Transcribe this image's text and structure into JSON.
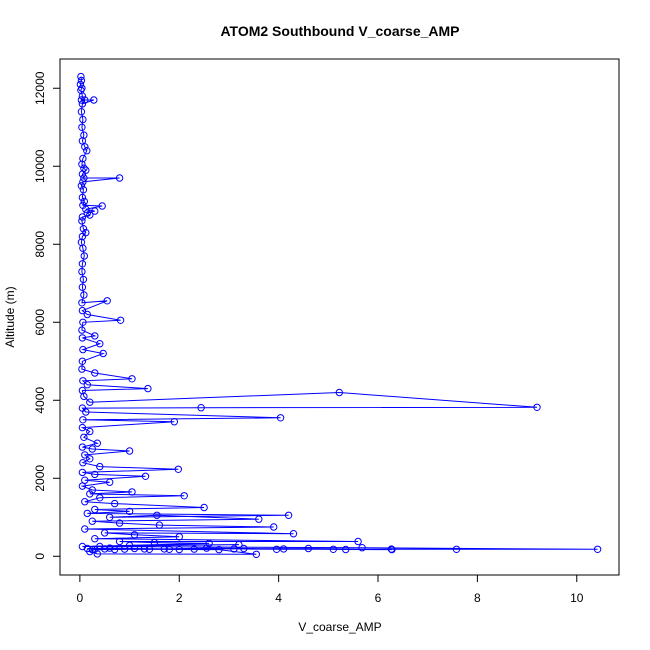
{
  "chart_data": {
    "type": "line",
    "title": "ATOM2 Southbound V_coarse_AMP",
    "xlabel": "V_coarse_AMP",
    "ylabel": "Altitude (m)",
    "xlim": [
      -0.4,
      10.85
    ],
    "ylim": [
      -480,
      12750
    ],
    "xticks": [
      "0",
      "2",
      "4",
      "6",
      "8",
      "10"
    ],
    "yticks": [
      "0",
      "2000",
      "4000",
      "6000",
      "8000",
      "10000",
      "12000"
    ],
    "grid": false,
    "marker": "open-circle",
    "colors": {
      "series": "#0000ff",
      "axis": "#000000",
      "background": "#ffffff"
    },
    "series": [
      {
        "points": [
          [
            0.02,
            12300
          ],
          [
            0.03,
            12200
          ],
          [
            0.01,
            12100
          ],
          [
            0.04,
            12000
          ],
          [
            0.02,
            11950
          ],
          [
            0.05,
            11800
          ],
          [
            0.03,
            11700
          ],
          [
            0.1,
            11700
          ],
          [
            0.28,
            11700
          ],
          [
            0.05,
            11600
          ],
          [
            0.03,
            11400
          ],
          [
            0.06,
            11200
          ],
          [
            0.04,
            11000
          ],
          [
            0.08,
            10800
          ],
          [
            0.05,
            10650
          ],
          [
            0.1,
            10500
          ],
          [
            0.14,
            10400
          ],
          [
            0.06,
            10200
          ],
          [
            0.04,
            10050
          ],
          [
            0.08,
            9950
          ],
          [
            0.12,
            9900
          ],
          [
            0.05,
            9800
          ],
          [
            0.08,
            9700
          ],
          [
            0.8,
            9700
          ],
          [
            0.06,
            9600
          ],
          [
            0.03,
            9500
          ],
          [
            0.07,
            9400
          ],
          [
            0.05,
            9200
          ],
          [
            0.09,
            9100
          ],
          [
            0.06,
            9000
          ],
          [
            0.45,
            8980
          ],
          [
            0.12,
            8900
          ],
          [
            0.3,
            8850
          ],
          [
            0.15,
            8800
          ],
          [
            0.2,
            8750
          ],
          [
            0.05,
            8700
          ],
          [
            0.04,
            8600
          ],
          [
            0.07,
            8400
          ],
          [
            0.12,
            8300
          ],
          [
            0.05,
            8200
          ],
          [
            0.03,
            8050
          ],
          [
            0.06,
            7900
          ],
          [
            0.09,
            7700
          ],
          [
            0.05,
            7500
          ],
          [
            0.04,
            7300
          ],
          [
            0.07,
            7100
          ],
          [
            0.05,
            6900
          ],
          [
            0.08,
            6700
          ],
          [
            0.04,
            6500
          ],
          [
            0.55,
            6550
          ],
          [
            0.05,
            6300
          ],
          [
            0.15,
            6200
          ],
          [
            0.82,
            6050
          ],
          [
            0.06,
            6000
          ],
          [
            0.04,
            5800
          ],
          [
            0.3,
            5650
          ],
          [
            0.05,
            5600
          ],
          [
            0.4,
            5450
          ],
          [
            0.06,
            5300
          ],
          [
            0.47,
            5200
          ],
          [
            0.05,
            5000
          ],
          [
            0.04,
            4800
          ],
          [
            0.3,
            4700
          ],
          [
            1.05,
            4550
          ],
          [
            0.06,
            4500
          ],
          [
            0.15,
            4400
          ],
          [
            1.37,
            4300
          ],
          [
            0.05,
            4250
          ],
          [
            0.08,
            4100
          ],
          [
            0.2,
            3950
          ],
          [
            5.22,
            4200
          ],
          [
            9.2,
            3820
          ],
          [
            2.44,
            3810
          ],
          [
            0.05,
            3800
          ],
          [
            0.12,
            3700
          ],
          [
            4.04,
            3550
          ],
          [
            0.06,
            3500
          ],
          [
            1.9,
            3450
          ],
          [
            0.05,
            3300
          ],
          [
            0.2,
            3200
          ],
          [
            0.08,
            3050
          ],
          [
            0.35,
            2900
          ],
          [
            0.05,
            2800
          ],
          [
            0.25,
            2750
          ],
          [
            1.0,
            2700
          ],
          [
            0.1,
            2600
          ],
          [
            0.2,
            2500
          ],
          [
            0.06,
            2400
          ],
          [
            0.4,
            2300
          ],
          [
            1.98,
            2230
          ],
          [
            0.05,
            2150
          ],
          [
            0.3,
            2100
          ],
          [
            1.32,
            2050
          ],
          [
            0.1,
            1950
          ],
          [
            0.6,
            1900
          ],
          [
            0.05,
            1800
          ],
          [
            0.25,
            1700
          ],
          [
            1.05,
            1650
          ],
          [
            0.2,
            1600
          ],
          [
            2.1,
            1550
          ],
          [
            0.4,
            1500
          ],
          [
            0.1,
            1400
          ],
          [
            0.7,
            1350
          ],
          [
            2.5,
            1250
          ],
          [
            0.3,
            1200
          ],
          [
            1.0,
            1150
          ],
          [
            0.15,
            1100
          ],
          [
            4.2,
            1050
          ],
          [
            0.6,
            1000
          ],
          [
            1.55,
            1050
          ],
          [
            3.6,
            950
          ],
          [
            0.25,
            900
          ],
          [
            0.8,
            850
          ],
          [
            1.6,
            800
          ],
          [
            3.9,
            750
          ],
          [
            0.1,
            700
          ],
          [
            4.3,
            580
          ],
          [
            0.5,
            600
          ],
          [
            1.1,
            550
          ],
          [
            2.0,
            500
          ],
          [
            0.3,
            450
          ],
          [
            5.6,
            380
          ],
          [
            0.8,
            380
          ],
          [
            1.5,
            350
          ],
          [
            2.6,
            330
          ],
          [
            0.05,
            250
          ],
          [
            3.2,
            300
          ],
          [
            1.0,
            280
          ],
          [
            0.4,
            250
          ],
          [
            5.68,
            220
          ],
          [
            10.42,
            180
          ],
          [
            7.58,
            180
          ],
          [
            6.27,
            185
          ],
          [
            5.1,
            180
          ],
          [
            3.96,
            180
          ],
          [
            3.1,
            190
          ],
          [
            2.3,
            185
          ],
          [
            1.8,
            180
          ],
          [
            1.3,
            190
          ],
          [
            0.9,
            185
          ],
          [
            0.5,
            190
          ],
          [
            0.3,
            180
          ],
          [
            0.2,
            120
          ],
          [
            0.35,
            60
          ],
          [
            3.55,
            50
          ],
          [
            2.8,
            170
          ],
          [
            2.0,
            175
          ],
          [
            1.4,
            180
          ],
          [
            0.7,
            175
          ],
          [
            0.25,
            170
          ],
          [
            4.6,
            200
          ],
          [
            6.28,
            170
          ],
          [
            5.35,
            175
          ],
          [
            4.1,
            190
          ],
          [
            3.3,
            200
          ],
          [
            2.55,
            210
          ],
          [
            1.7,
            190
          ],
          [
            1.1,
            200
          ],
          [
            0.6,
            210
          ],
          [
            0.15,
            200
          ]
        ]
      }
    ]
  }
}
